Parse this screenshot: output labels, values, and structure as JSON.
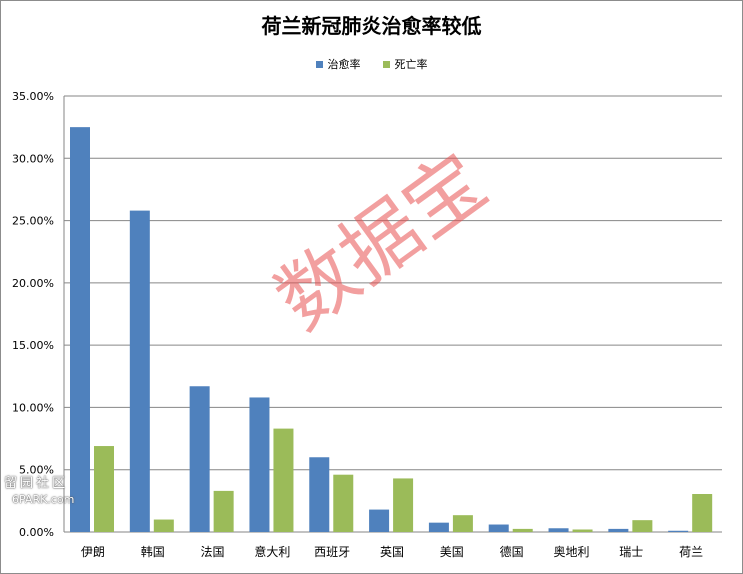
{
  "chart_data": {
    "type": "bar",
    "title": "荷兰新冠肺炎治愈率较低",
    "categories": [
      "伊朗",
      "韩国",
      "法国",
      "意大利",
      "西班牙",
      "英国",
      "美国",
      "德国",
      "奥地利",
      "瑞士",
      "荷兰"
    ],
    "series": [
      {
        "name": "治愈率",
        "color": "#4f81bd",
        "values": [
          32.5,
          25.8,
          11.7,
          10.8,
          6.0,
          1.8,
          0.75,
          0.6,
          0.3,
          0.25,
          0.1
        ]
      },
      {
        "name": "死亡率",
        "color": "#9bbb59",
        "values": [
          6.9,
          1.0,
          3.3,
          8.3,
          4.6,
          4.3,
          1.35,
          0.25,
          0.2,
          0.95,
          3.05
        ]
      }
    ],
    "ylim": [
      0,
      35
    ],
    "yticks": [
      "0.00%",
      "5.00%",
      "10.00%",
      "15.00%",
      "20.00%",
      "25.00%",
      "30.00%",
      "35.00%"
    ],
    "grid": true,
    "legend_position": "top-center"
  },
  "watermark": {
    "main_text": "数据宝",
    "corner_text": "留园社区",
    "corner_site": "6PARK.com"
  }
}
